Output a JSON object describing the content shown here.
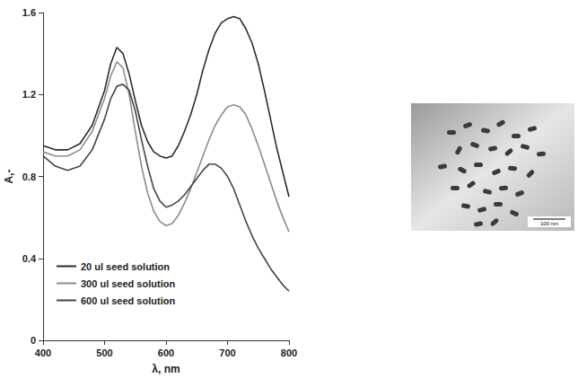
{
  "chart_data": {
    "type": "line",
    "x_label": "λ, nm",
    "y_label": "A,-",
    "x": [
      400,
      420,
      440,
      460,
      480,
      500,
      510,
      520,
      530,
      540,
      550,
      560,
      570,
      580,
      590,
      600,
      610,
      620,
      630,
      640,
      650,
      660,
      670,
      680,
      690,
      700,
      710,
      720,
      730,
      740,
      750,
      760,
      770,
      780,
      790,
      800
    ],
    "series": [
      {
        "name": "20 ul seed solution",
        "color": "#2b2b2b",
        "values": [
          0.95,
          0.93,
          0.93,
          0.96,
          1.05,
          1.22,
          1.35,
          1.43,
          1.4,
          1.3,
          1.17,
          1.05,
          0.97,
          0.92,
          0.9,
          0.89,
          0.9,
          0.95,
          1.02,
          1.1,
          1.2,
          1.32,
          1.42,
          1.5,
          1.55,
          1.57,
          1.58,
          1.57,
          1.52,
          1.45,
          1.35,
          1.22,
          1.08,
          0.94,
          0.82,
          0.7
        ]
      },
      {
        "name": "300 ul seed solution",
        "color": "#8c8c8c",
        "values": [
          0.92,
          0.9,
          0.9,
          0.93,
          1.02,
          1.18,
          1.29,
          1.36,
          1.33,
          1.2,
          1.02,
          0.85,
          0.72,
          0.63,
          0.58,
          0.56,
          0.57,
          0.61,
          0.67,
          0.74,
          0.82,
          0.9,
          0.98,
          1.05,
          1.1,
          1.14,
          1.15,
          1.14,
          1.1,
          1.03,
          0.95,
          0.86,
          0.77,
          0.68,
          0.6,
          0.53
        ]
      },
      {
        "name": "600 ul seed solution",
        "color": "#444444",
        "values": [
          0.9,
          0.85,
          0.83,
          0.85,
          0.93,
          1.08,
          1.18,
          1.24,
          1.25,
          1.22,
          1.12,
          0.98,
          0.85,
          0.74,
          0.68,
          0.65,
          0.66,
          0.68,
          0.71,
          0.75,
          0.79,
          0.83,
          0.86,
          0.86,
          0.84,
          0.8,
          0.74,
          0.66,
          0.58,
          0.51,
          0.45,
          0.4,
          0.35,
          0.31,
          0.27,
          0.24
        ]
      }
    ],
    "xlim": [
      400,
      800
    ],
    "xticks": [
      400,
      500,
      600,
      700,
      800
    ],
    "ylim": [
      0,
      1.6
    ],
    "yticks": [
      0,
      0.4,
      0.8,
      1.2,
      1.6
    ],
    "grid": false,
    "legend": "lower left",
    "annotations": [
      "100 nm"
    ]
  }
}
